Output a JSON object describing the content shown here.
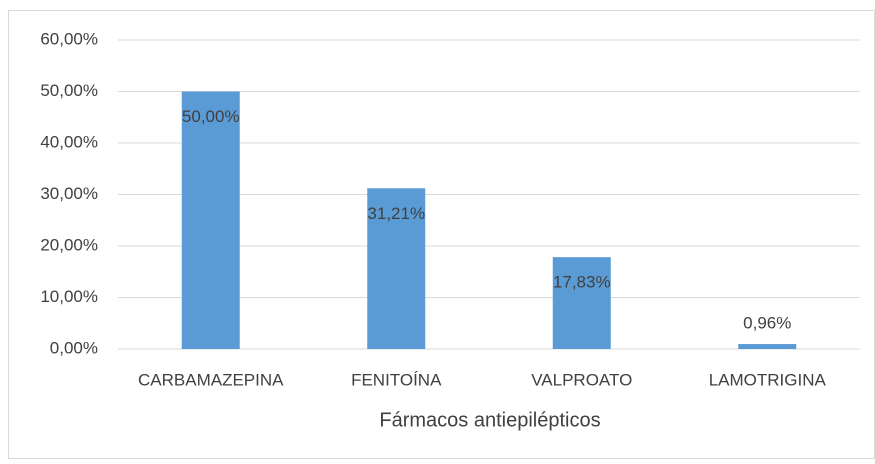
{
  "chart_data": {
    "type": "bar",
    "x_label": "Fármacos antiepilépticos",
    "categories": [
      "CARBAMAZEPINA",
      "FENITOÍNA",
      "VALPROATO",
      "LAMOTRIGINA"
    ],
    "values": [
      50,
      31.21,
      17.83,
      0.96
    ],
    "value_labels": [
      "50,00%",
      "31,21%",
      "17,83%",
      "0,96%"
    ],
    "color": "#5b9bd5",
    "ylim": [
      0,
      60
    ],
    "yticks": [
      {
        "value": 0,
        "label": "0,00%"
      },
      {
        "value": 10,
        "label": "10,00%"
      },
      {
        "value": 20,
        "label": "20,00%"
      },
      {
        "value": 30,
        "label": "30,00%"
      },
      {
        "value": 40,
        "label": "40,00%"
      },
      {
        "value": 50,
        "label": "50,00%"
      },
      {
        "value": 60,
        "label": "60,00%"
      }
    ],
    "grid": true
  }
}
